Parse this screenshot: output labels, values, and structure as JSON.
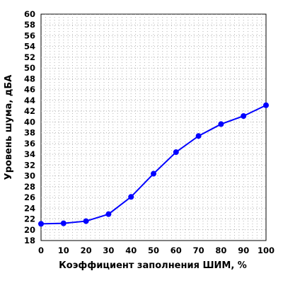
{
  "chart_data": {
    "type": "line",
    "xlabel": "Коэффициент заполнения ШИМ, %",
    "ylabel": "Уровень шума, дБА",
    "xlim": [
      0,
      100
    ],
    "ylim": [
      18,
      60
    ],
    "x_ticks": [
      0,
      10,
      20,
      30,
      40,
      50,
      60,
      70,
      80,
      90,
      100
    ],
    "y_ticks": [
      18,
      20,
      22,
      24,
      26,
      28,
      30,
      32,
      34,
      36,
      38,
      40,
      42,
      44,
      46,
      48,
      50,
      52,
      54,
      56,
      58,
      60
    ],
    "x_tick_labels": [
      "0",
      "10",
      "20",
      "30",
      "40",
      "50",
      "60",
      "70",
      "80",
      "90",
      "100"
    ],
    "y_tick_labels": [
      "18",
      "20",
      "22",
      "24",
      "26",
      "28",
      "30",
      "32",
      "34",
      "36",
      "38",
      "40",
      "42",
      "44",
      "46",
      "48",
      "50",
      "52",
      "54",
      "56",
      "58",
      "60"
    ],
    "grid": true,
    "legend": "none",
    "series": [
      {
        "color": "#0000ff",
        "x": [
          0,
          10,
          20,
          30,
          40,
          50,
          60,
          70,
          80,
          90,
          100
        ],
        "y": [
          21.1,
          21.2,
          21.6,
          22.9,
          26.1,
          30.4,
          34.4,
          37.4,
          39.6,
          41.1,
          43.1
        ]
      }
    ]
  }
}
